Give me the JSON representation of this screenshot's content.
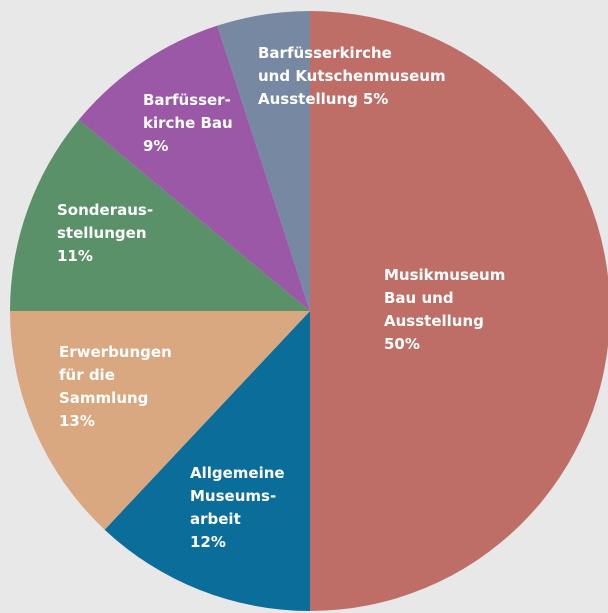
{
  "chart_data": {
    "type": "pie",
    "categories": [
      [
        "Musikmuseum",
        "Bau und",
        "Ausstellung"
      ],
      [
        "Allgemeine",
        "Museums-",
        "arbeit"
      ],
      [
        "Erwerbungen",
        "für die",
        "Sammlung"
      ],
      [
        "Sonderaus-",
        "stellungen"
      ],
      [
        "Barfüsser-",
        "kirche Bau"
      ],
      [
        "Barfüsserkirche",
        "und Kutschenmuseum",
        "Ausstellung"
      ]
    ],
    "values": [
      50,
      12,
      13,
      11,
      9,
      5
    ],
    "value_labels": [
      "50%",
      "12%",
      "13%",
      "11%",
      "9%",
      "5%"
    ],
    "colors": [
      "#bf6e67",
      "#0b6d99",
      "#d9a780",
      "#5a9168",
      "#9a58a7",
      "#7788a2"
    ]
  }
}
